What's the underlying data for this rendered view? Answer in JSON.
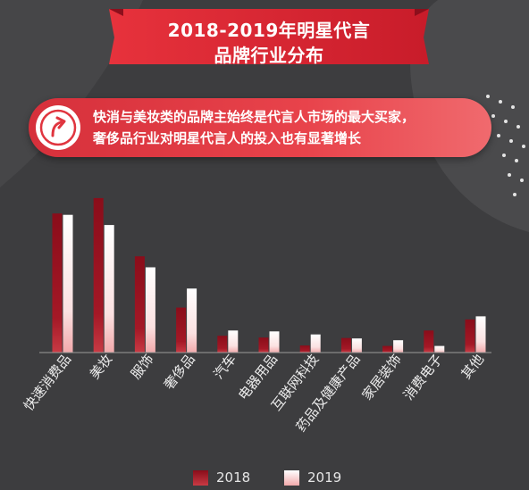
{
  "header": {
    "title_line1": "2018-2019年明星代言",
    "title_line2": "品牌行业分布"
  },
  "callout": {
    "line1": "快消与美妆类的品牌主始终是代言人市场的最大买家，",
    "line2": "奢侈品行业对明星代言人的投入也有显著增长",
    "icon": "up-arrow-circle-icon"
  },
  "colors": {
    "background": "#3d3d3f",
    "accent_red": "#e0353f",
    "series_2018": "#8c0f1c",
    "series_2019": "#fde8e8"
  },
  "chart_data": {
    "type": "bar",
    "categories": [
      "快速消费品",
      "美妆",
      "服饰",
      "奢侈品",
      "汽车",
      "电器用品",
      "互联网科技",
      "药品及健康产品",
      "家居装饰",
      "消费电子",
      "其他"
    ],
    "series": [
      {
        "name": "2018",
        "values": [
          31.5,
          35.0,
          21.8,
          10.2,
          3.8,
          3.4,
          1.6,
          3.3,
          1.5,
          5.0,
          7.5
        ]
      },
      {
        "name": "2019",
        "values": [
          31.2,
          28.9,
          19.3,
          14.5,
          5.0,
          4.8,
          4.1,
          3.2,
          2.8,
          1.5,
          8.2
        ]
      }
    ],
    "title": "",
    "xlabel": "",
    "ylabel": "",
    "ylim": [
      0,
      37
    ],
    "grid": false,
    "legend": "bottom-center"
  }
}
